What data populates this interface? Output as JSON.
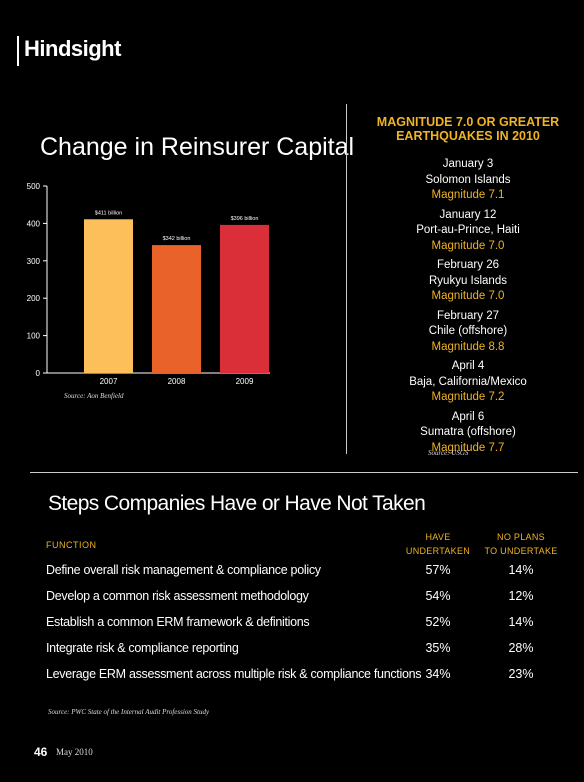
{
  "header": {
    "title": "Hindsight"
  },
  "chart_data": {
    "type": "bar",
    "title": "Change in Reinsurer Capital",
    "categories": [
      "2007",
      "2008",
      "2009"
    ],
    "values": [
      411,
      342,
      396
    ],
    "data_labels": [
      "$411 billion",
      "$342 billion",
      "$396 billion"
    ],
    "colors": [
      "#fdbf5a",
      "#e8622a",
      "#da2f39"
    ],
    "ylim": [
      0,
      500
    ],
    "yticks": [
      "0",
      "100",
      "200",
      "300",
      "400",
      "500"
    ],
    "xlabel": "",
    "ylabel": "",
    "grid": false,
    "source": "Source: Aon Benfield"
  },
  "earthquakes": {
    "title_line1": "MAGNITUDE 7.0 OR GREATER",
    "title_line2": "EARTHQUAKES IN 2010",
    "items": [
      {
        "date": "January 3",
        "place": "Solomon Islands",
        "magnitude": "Magnitude 7.1"
      },
      {
        "date": "January 12",
        "place": "Port-au-Prince, Haiti",
        "magnitude": "Magnitude 7.0"
      },
      {
        "date": "February 26",
        "place": "Ryukyu Islands",
        "magnitude": "Magnitude 7.0"
      },
      {
        "date": "February 27",
        "place": "Chile (offshore)",
        "magnitude": "Magnitude 8.8"
      },
      {
        "date": "April 4",
        "place": "Baja, California/Mexico",
        "magnitude": "Magnitude 7.2"
      },
      {
        "date": "April 6",
        "place": "Sumatra (offshore)",
        "magnitude": "Magnitude 7.7"
      }
    ],
    "source": "Source: USGS"
  },
  "steps": {
    "title": "Steps Companies Have or Have Not Taken",
    "col_function": "FUNCTION",
    "col_have_line1": "HAVE",
    "col_have_line2": "UNDERTAKEN",
    "col_noplans_line1": "NO PLANS",
    "col_noplans_line2": "TO UNDERTAKE",
    "rows": [
      {
        "label": "Define overall risk management & compliance policy",
        "have": "57%",
        "noplans": "14%"
      },
      {
        "label": "Develop a common risk assessment methodology",
        "have": "54%",
        "noplans": "12%"
      },
      {
        "label": "Establish a common ERM framework & definitions",
        "have": "52%",
        "noplans": "14%"
      },
      {
        "label": "Integrate risk & compliance reporting",
        "have": "35%",
        "noplans": "28%"
      },
      {
        "label": "Leverage ERM assessment across multiple risk & compliance functions",
        "have": "34%",
        "noplans": "23%"
      }
    ],
    "source": "Source: PWC State of the Internal Audit Profession Study"
  },
  "footer": {
    "page_number": "46",
    "issue_date": "May 2010"
  }
}
